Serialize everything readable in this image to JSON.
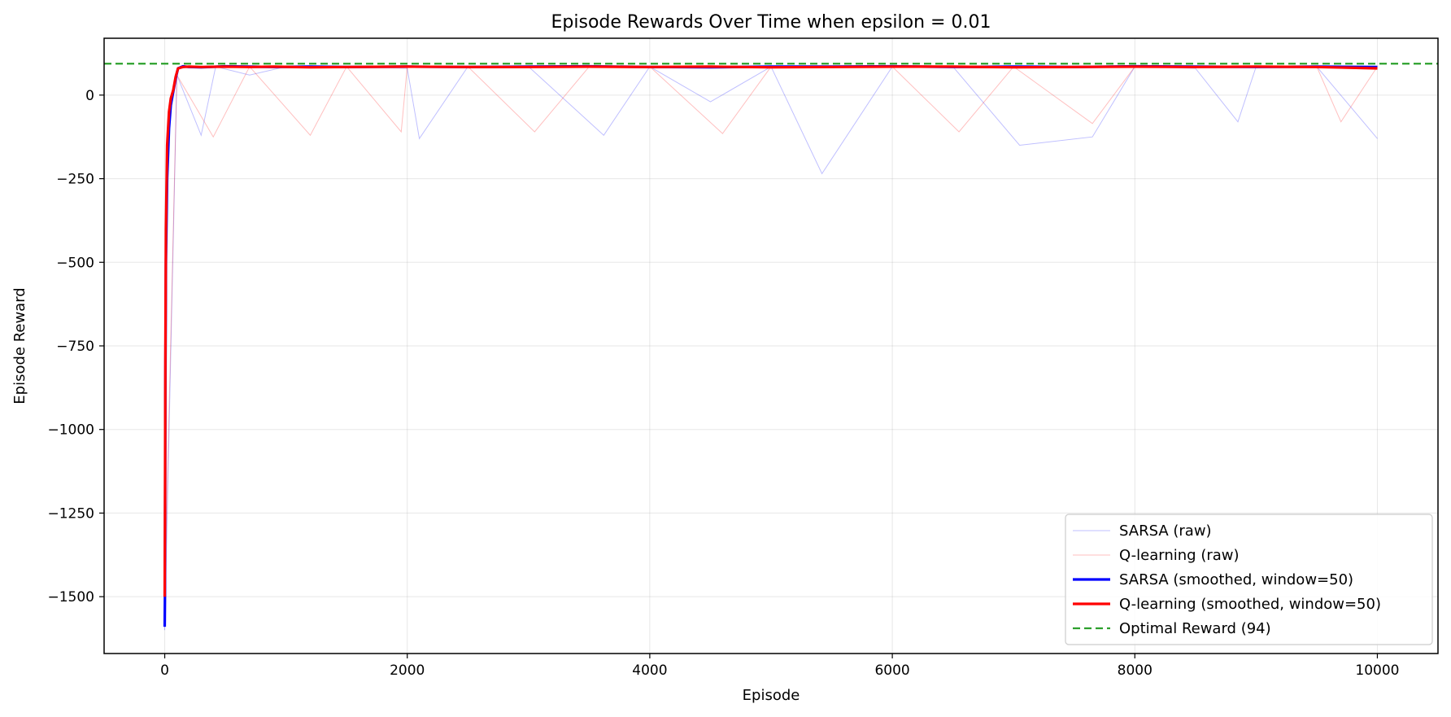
{
  "chart_data": {
    "type": "line",
    "title": "Episode Rewards Over Time when epsilon = 0.01",
    "xlabel": "Episode",
    "ylabel": "Episode Reward",
    "xlim": [
      -500,
      10500
    ],
    "ylim": [
      -1670,
      170
    ],
    "x_ticks": [
      0,
      2000,
      4000,
      6000,
      8000,
      10000
    ],
    "y_ticks": [
      0,
      -250,
      -500,
      -750,
      -1000,
      -1250,
      -1500
    ],
    "x_tick_labels": [
      "0",
      "2000",
      "4000",
      "6000",
      "8000",
      "10000"
    ],
    "y_tick_labels": [
      "0",
      "−250",
      "−500",
      "−750",
      "−1000",
      "−1250",
      "−1500"
    ],
    "grid": true,
    "legend_position": "lower-right",
    "optimal_reward": 94,
    "series": [
      {
        "name": "SARSA (raw)",
        "color": "#0000ff",
        "style": "thin-faint",
        "x": [
          0,
          100,
          300,
          420,
          700,
          1000,
          1500,
          2000,
          2100,
          2500,
          3000,
          3620,
          4000,
          4500,
          5000,
          5420,
          6000,
          6500,
          7050,
          7650,
          8000,
          8500,
          8850,
          9000,
          9500,
          10000
        ],
        "values": [
          -1600,
          60,
          -120,
          85,
          60,
          85,
          85,
          80,
          -130,
          85,
          85,
          -120,
          85,
          -20,
          85,
          -235,
          85,
          85,
          -150,
          -125,
          85,
          80,
          -80,
          85,
          85,
          -130
        ]
      },
      {
        "name": "Q-learning (raw)",
        "color": "#ff0000",
        "style": "thin-faint",
        "x": [
          0,
          100,
          400,
          700,
          1200,
          1500,
          1950,
          2000,
          2500,
          3050,
          3500,
          4000,
          4600,
          5000,
          5500,
          6000,
          6550,
          7000,
          7650,
          8000,
          8500,
          9000,
          9500,
          9700,
          10000
        ],
        "values": [
          -1500,
          60,
          -125,
          85,
          -120,
          85,
          -110,
          85,
          85,
          -110,
          85,
          85,
          -115,
          85,
          85,
          85,
          -110,
          85,
          -85,
          85,
          85,
          85,
          85,
          -80,
          85
        ]
      },
      {
        "name": "SARSA (smoothed, window=50)",
        "color": "#0000ff",
        "style": "thick",
        "x": [
          0,
          2,
          5,
          10,
          20,
          35,
          50,
          70,
          90,
          110,
          150,
          200,
          300,
          500,
          700,
          900,
          1200,
          1500,
          2000,
          2500,
          3000,
          3500,
          4000,
          4500,
          5000,
          5500,
          6000,
          6500,
          7000,
          7500,
          8000,
          8500,
          9000,
          9500,
          10000
        ],
        "values": [
          -1590,
          -1500,
          -900,
          -500,
          -250,
          -100,
          -30,
          10,
          50,
          80,
          86,
          84,
          83,
          86,
          85,
          84,
          85,
          84,
          85,
          84,
          85,
          86,
          84,
          83,
          85,
          85,
          86,
          84,
          85,
          84,
          86,
          85,
          84,
          85,
          84
        ]
      },
      {
        "name": "Q-learning (smoothed, window=50)",
        "color": "#ff0000",
        "style": "thick",
        "x": [
          0,
          2,
          5,
          10,
          20,
          35,
          50,
          70,
          90,
          110,
          150,
          200,
          300,
          500,
          700,
          900,
          1200,
          1500,
          2000,
          2500,
          3000,
          3500,
          4000,
          4500,
          5000,
          5500,
          6000,
          6500,
          7000,
          7500,
          8000,
          8500,
          9000,
          9500,
          10000
        ],
        "values": [
          -1500,
          -1300,
          -800,
          -400,
          -150,
          -50,
          -10,
          15,
          55,
          80,
          84,
          85,
          84,
          85,
          84,
          85,
          83,
          84,
          85,
          84,
          84,
          85,
          84,
          85,
          83,
          84,
          85,
          85,
          83,
          84,
          85,
          84,
          85,
          84,
          80
        ]
      },
      {
        "name": "Optimal Reward (94)",
        "color": "#2ca02c",
        "style": "dashed",
        "x": [
          -500,
          10500
        ],
        "values": [
          94,
          94
        ]
      }
    ]
  }
}
